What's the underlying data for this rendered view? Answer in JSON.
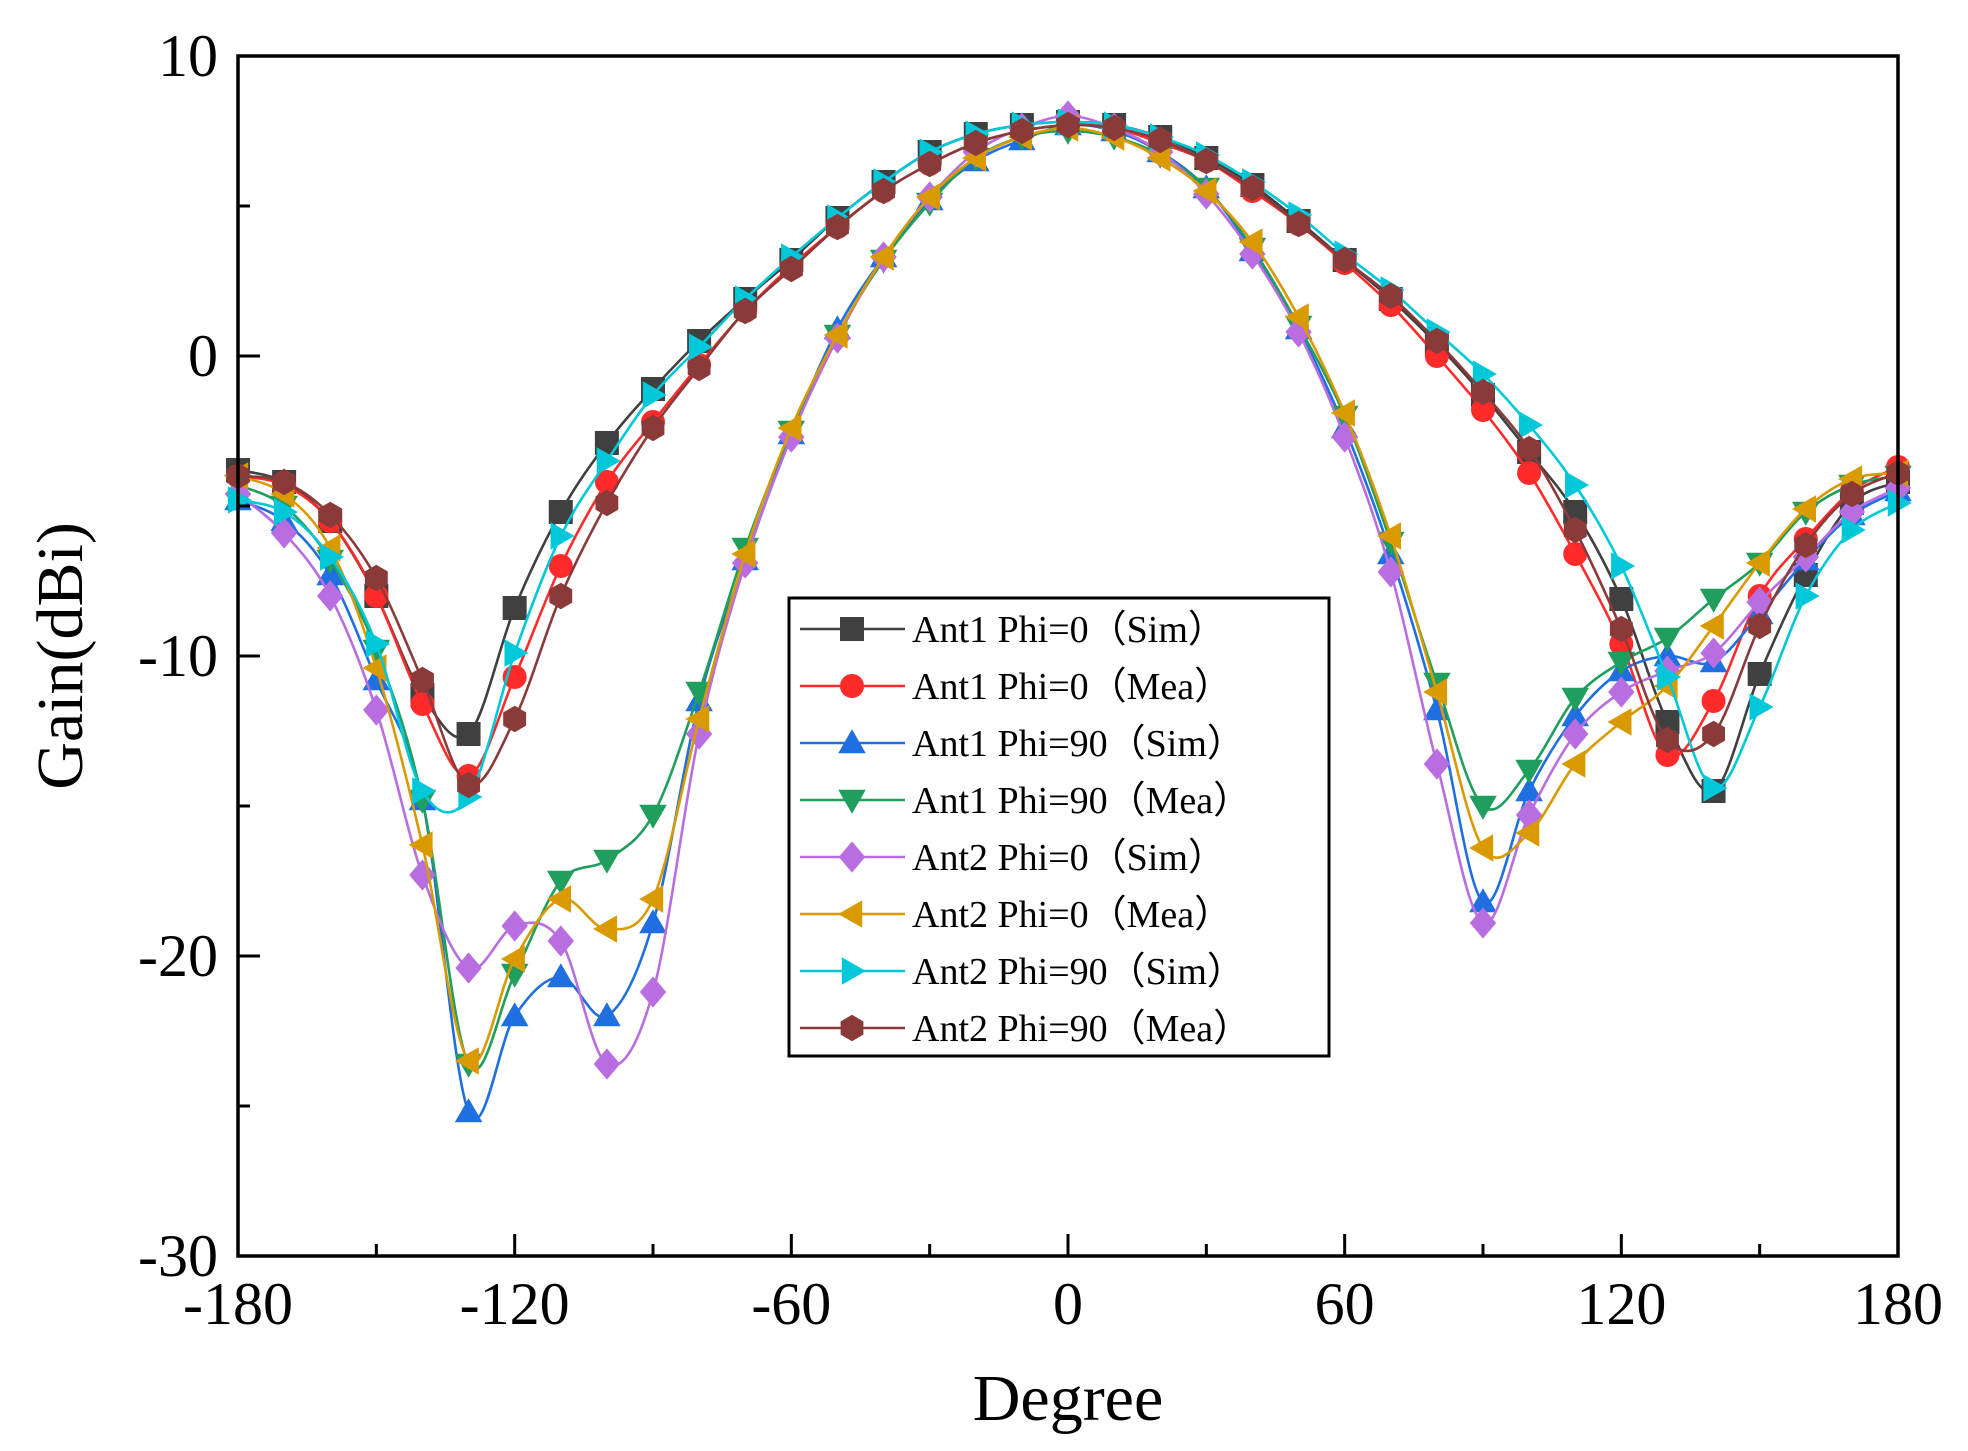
{
  "chart_data": {
    "type": "line",
    "title": "",
    "xlabel": "Degree",
    "ylabel": "Gain(dBi)",
    "xlim": [
      -180,
      180
    ],
    "ylim": [
      -30,
      10
    ],
    "xticks": [
      "-180",
      "-120",
      "-60",
      "0",
      "60",
      "120",
      "180"
    ],
    "yticks": [
      "10",
      "0",
      "-10",
      "-20",
      "-30"
    ],
    "xtick_values": [
      -180,
      -120,
      -60,
      0,
      60,
      120,
      180
    ],
    "ytick_values": [
      10,
      0,
      -10,
      -20,
      -30
    ],
    "grid": false,
    "legend_position": "center",
    "x": [
      -180,
      -170,
      -160,
      -150,
      -140,
      -130,
      -120,
      -110,
      -100,
      -90,
      -80,
      -70,
      -60,
      -50,
      -40,
      -30,
      -20,
      -10,
      0,
      10,
      20,
      30,
      40,
      50,
      60,
      70,
      80,
      90,
      100,
      110,
      120,
      130,
      140,
      150,
      160,
      170,
      180
    ],
    "series": [
      {
        "name": "Ant1 Phi=0（Sim）",
        "color": "#404040",
        "marker": "square",
        "values": [
          -3.8,
          -4.2,
          -5.5,
          -8.0,
          -11.3,
          -12.6,
          -8.4,
          -5.2,
          -2.9,
          -1.1,
          0.5,
          1.9,
          3.2,
          4.6,
          5.8,
          6.8,
          7.4,
          7.7,
          7.8,
          7.7,
          7.3,
          6.6,
          5.7,
          4.5,
          3.2,
          1.9,
          0.4,
          -1.3,
          -3.2,
          -5.2,
          -8.1,
          -12.2,
          -14.5,
          -10.6,
          -7.3,
          -4.9,
          -4.2
        ]
      },
      {
        "name": "Ant1 Phi=0（Mea）",
        "color": "#ff2a2a",
        "marker": "circle",
        "values": [
          -4.0,
          -4.3,
          -5.5,
          -8.0,
          -11.6,
          -14.0,
          -10.7,
          -7.0,
          -4.2,
          -2.2,
          -0.3,
          1.5,
          3.0,
          4.3,
          5.5,
          6.4,
          7.1,
          7.5,
          7.7,
          7.6,
          7.1,
          6.5,
          5.5,
          4.4,
          3.1,
          1.7,
          0.0,
          -1.8,
          -3.9,
          -6.6,
          -9.6,
          -13.3,
          -11.5,
          -8.0,
          -6.1,
          -4.5,
          -3.7
        ]
      },
      {
        "name": "Ant1 Phi=90（Sim）",
        "color": "#1f6fe0",
        "marker": "triangle-up",
        "values": [
          -4.8,
          -5.5,
          -7.3,
          -10.8,
          -14.8,
          -25.2,
          -22.0,
          -20.7,
          -22.0,
          -18.9,
          -11.5,
          -6.8,
          -2.6,
          0.9,
          3.3,
          5.2,
          6.5,
          7.2,
          7.7,
          7.5,
          6.8,
          5.6,
          3.5,
          0.9,
          -2.4,
          -6.6,
          -11.8,
          -18.2,
          -14.5,
          -12.0,
          -10.5,
          -10.0,
          -10.2,
          -8.6,
          -6.8,
          -5.3,
          -4.5
        ]
      },
      {
        "name": "Ant1 Phi=90（Mea）",
        "color": "#1f9e5e",
        "marker": "triangle-down",
        "values": [
          -4.3,
          -5.0,
          -6.8,
          -9.8,
          -14.8,
          -23.6,
          -20.6,
          -17.5,
          -16.8,
          -15.3,
          -11.2,
          -6.4,
          -2.5,
          0.7,
          3.2,
          5.1,
          6.6,
          7.3,
          7.5,
          7.3,
          6.7,
          5.6,
          3.6,
          1.0,
          -2.0,
          -6.2,
          -10.9,
          -15.0,
          -13.8,
          -11.4,
          -10.2,
          -9.4,
          -8.1,
          -6.9,
          -5.2,
          -4.3,
          -4.0
        ]
      },
      {
        "name": "Ant2 Phi=0（Sim）",
        "color": "#b86ee0",
        "marker": "diamond",
        "values": [
          -4.6,
          -5.9,
          -8.0,
          -11.8,
          -17.3,
          -20.4,
          -19.0,
          -19.5,
          -23.6,
          -21.2,
          -12.6,
          -6.9,
          -2.7,
          0.6,
          3.3,
          5.3,
          6.8,
          7.6,
          8.0,
          7.6,
          6.8,
          5.4,
          3.4,
          0.8,
          -2.7,
          -7.2,
          -13.6,
          -18.9,
          -15.3,
          -12.6,
          -11.2,
          -10.5,
          -9.9,
          -8.2,
          -6.7,
          -5.2,
          -4.4
        ]
      },
      {
        "name": "Ant2 Phi=0（Mea）",
        "color": "#d99a00",
        "marker": "triangle-left",
        "values": [
          -4.0,
          -4.6,
          -6.4,
          -10.4,
          -16.3,
          -23.5,
          -20.1,
          -18.1,
          -19.1,
          -18.1,
          -12.1,
          -6.6,
          -2.4,
          0.7,
          3.3,
          5.3,
          6.6,
          7.3,
          7.6,
          7.3,
          6.6,
          5.5,
          3.8,
          1.3,
          -1.9,
          -6.0,
          -11.2,
          -16.4,
          -15.9,
          -13.6,
          -12.2,
          -11.0,
          -9.0,
          -6.9,
          -5.1,
          -4.1,
          -3.9
        ]
      },
      {
        "name": "Ant2 Phi=90（Sim）",
        "color": "#00c8d8",
        "marker": "triangle-right",
        "values": [
          -4.8,
          -5.2,
          -6.7,
          -9.6,
          -14.5,
          -14.7,
          -9.9,
          -6.0,
          -3.5,
          -1.3,
          0.3,
          1.9,
          3.3,
          4.6,
          5.8,
          6.8,
          7.4,
          7.7,
          7.8,
          7.7,
          7.3,
          6.7,
          5.8,
          4.7,
          3.4,
          2.2,
          0.8,
          -0.6,
          -2.3,
          -4.3,
          -7.0,
          -10.7,
          -14.4,
          -11.7,
          -8.0,
          -5.8,
          -4.9
        ]
      },
      {
        "name": "Ant2 Phi=90（Mea）",
        "color": "#8b3a3a",
        "marker": "hexagon",
        "values": [
          -4.0,
          -4.2,
          -5.3,
          -7.4,
          -10.8,
          -14.3,
          -12.1,
          -8.0,
          -4.9,
          -2.4,
          -0.4,
          1.5,
          2.9,
          4.3,
          5.5,
          6.4,
          7.1,
          7.5,
          7.7,
          7.6,
          7.2,
          6.5,
          5.6,
          4.4,
          3.2,
          2.0,
          0.5,
          -1.2,
          -3.1,
          -5.8,
          -9.1,
          -12.8,
          -12.6,
          -9.0,
          -6.3,
          -4.6,
          -3.9
        ]
      }
    ]
  }
}
